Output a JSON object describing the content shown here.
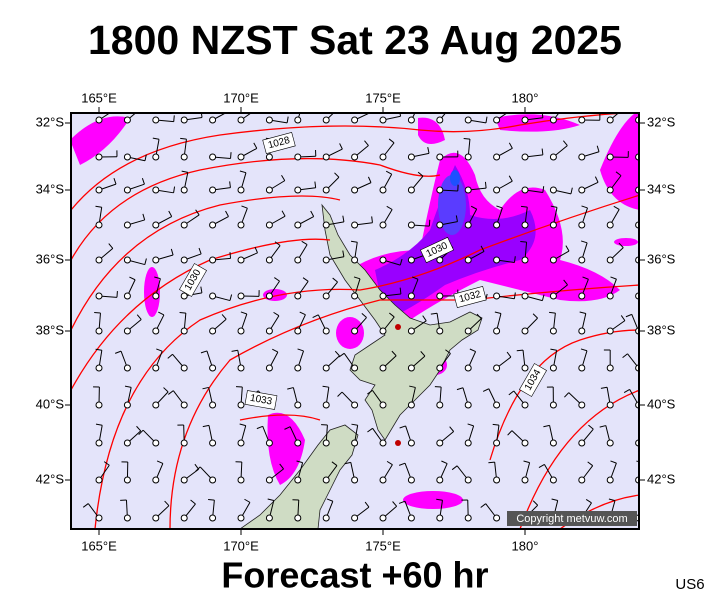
{
  "header": {
    "title": "1800 NZST Sat 23 Aug 2025"
  },
  "map": {
    "lon_labels": [
      "165°E",
      "170°E",
      "175°E",
      "180°"
    ],
    "lat_labels": [
      "32°S",
      "34°S",
      "36°S",
      "38°S",
      "40°S",
      "42°S"
    ],
    "isobar_labels": [
      "1028",
      "1030",
      "1030",
      "1032",
      "1033",
      "1034"
    ],
    "copyright": "Copyright metvuw.com"
  },
  "footer": {
    "forecast": "Forecast +60 hr",
    "region": "US6"
  }
}
